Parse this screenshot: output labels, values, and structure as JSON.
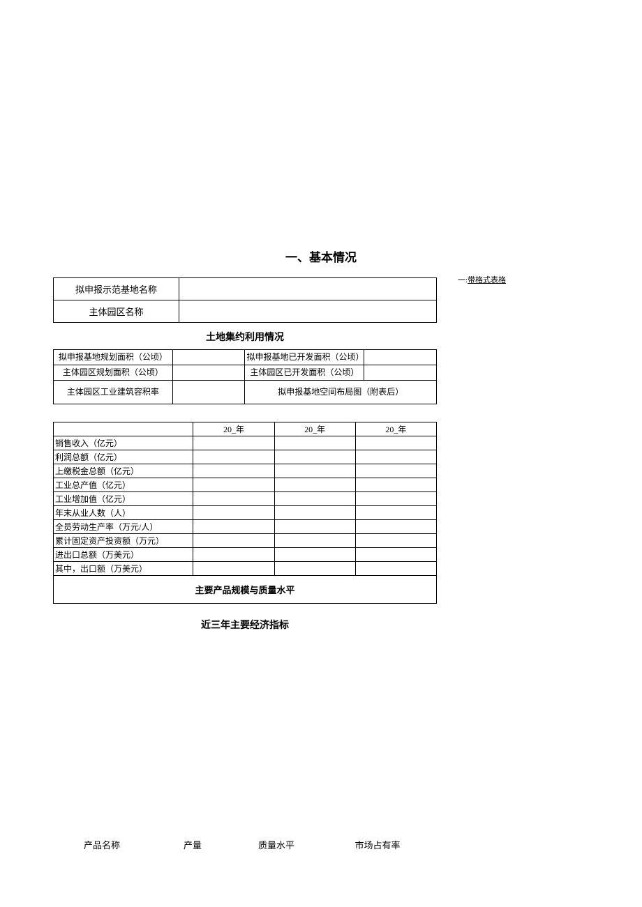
{
  "section_title": "一、基本情况",
  "annotation_prefix": "一:",
  "annotation_text": "带格式表格",
  "table1": {
    "row1_label": "拟申报示范基地名称",
    "row1_value": "",
    "row2_label": "主体园区名称",
    "row2_value": ""
  },
  "subtitle1": "土地集约利用情况",
  "table2": {
    "r1c1": "拟申报基地规划面积（公顷）",
    "r1c2": "",
    "r1c3": "拟申报基地已开发面积（公顷）",
    "r1c4": "",
    "r2c1": "主体园区规划面积（公顷）",
    "r2c2": "",
    "r2c3": "主体园区已开发面积（公顷）",
    "r2c4": "",
    "r3c1": "主体园区工业建筑容积率",
    "r3c2": "",
    "r3_merged": "拟申报基地空间布局图（附表后）"
  },
  "table3": {
    "year1": "20_年",
    "year2": "20_年",
    "year3": "20_年",
    "metrics": [
      "销售收入（亿元）",
      "利润总额（亿元）",
      "上缴税金总额（亿元）",
      "工业总产值（亿元）",
      "工业增加值（亿元）",
      "年末从业人数（人）",
      "全员劳动生产率（万元/人）",
      "累计固定资产投资额（万元）",
      "进出口总额（万美元）",
      "其中，出口额（万美元）"
    ],
    "footer_title": "主要产品规模与质量水平"
  },
  "section_caption": "近三年主要经济指标",
  "footer_columns": {
    "c1": "产品名称",
    "c2": "产量",
    "c3": "质量水平",
    "c4": "市场占有率"
  }
}
